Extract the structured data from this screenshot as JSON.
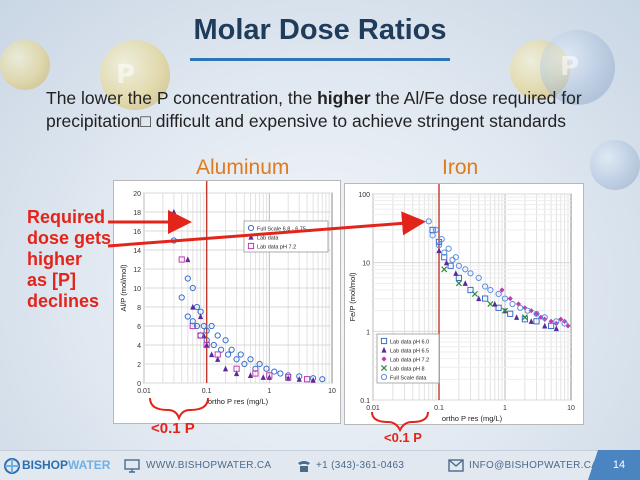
{
  "slide": {
    "title": "Molar Dose Ratios",
    "subtitle_pre": "The lower the P concentration, the ",
    "subtitle_bold": "higher",
    "subtitle_post": " the Al/Fe dose required for precipitation□ difficult and expensive to achieve stringent standards",
    "annotation_lines": [
      "Required",
      "dose gets",
      "higher",
      "as [P]",
      "declines"
    ],
    "range_label_left": "<0.1 P",
    "range_label_right": "<0.1 P",
    "page_number": "14"
  },
  "footer": {
    "logo_part1": "BISHOP",
    "logo_part2": "WATER",
    "website": "WWW.BISHOPWATER.CA",
    "phone": "+1 (343)-361-0463",
    "email": "INFO@BISHOPWATER.CA"
  },
  "colors": {
    "title": "#1f3c5a",
    "accent": "#2e75b6",
    "header_orange": "#e07a1e",
    "annotation_red": "#e3241b"
  },
  "chart_data": [
    {
      "type": "scatter",
      "header": "Aluminum",
      "xlabel": "ortho P res (mg/L)",
      "ylabel": "Al/P (mol/mol)",
      "xscale": "log",
      "xlim": [
        0.01,
        10
      ],
      "ylim": [
        0,
        20
      ],
      "x_ticks": [
        0.01,
        0.1,
        1,
        10
      ],
      "x_tick_labels": [
        "0.01",
        "0.1",
        "1",
        "10"
      ],
      "y_ticks": [
        0,
        2,
        4,
        6,
        8,
        10,
        12,
        14,
        16,
        18,
        20
      ],
      "y_tick_labels": [
        "0",
        "2",
        "4",
        "6",
        "8",
        "10",
        "12",
        "14",
        "16",
        "18",
        "20"
      ],
      "reference_line_x": 0.1,
      "legend_position": "top-right",
      "series": [
        {
          "name": "Full Scale 6.8 - 6.75",
          "marker": "circle",
          "color": "#3a6fd0",
          "x": [
            0.03,
            0.04,
            0.05,
            0.05,
            0.06,
            0.06,
            0.07,
            0.07,
            0.08,
            0.08,
            0.09,
            0.1,
            0.1,
            0.12,
            0.13,
            0.15,
            0.17,
            0.2,
            0.22,
            0.25,
            0.3,
            0.35,
            0.4,
            0.5,
            0.6,
            0.7,
            0.9,
            1.2,
            1.5,
            2,
            3,
            5,
            7
          ],
          "y": [
            15,
            9,
            11,
            7,
            10,
            6.5,
            8,
            6,
            7.5,
            5,
            6,
            5.5,
            4.5,
            6,
            4,
            5,
            3.5,
            4.5,
            3,
            3.5,
            2.5,
            3,
            2,
            2.5,
            1.5,
            2,
            1.5,
            1.2,
            1,
            0.8,
            0.7,
            0.5,
            0.4
          ]
        },
        {
          "name": "Lab data",
          "marker": "triangle",
          "color": "#5a2a9a",
          "x": [
            0.03,
            0.05,
            0.06,
            0.08,
            0.09,
            0.1,
            0.12,
            0.15,
            0.2,
            0.3,
            0.5,
            0.8,
            1,
            2,
            3,
            5
          ],
          "y": [
            18,
            13,
            8,
            7,
            5,
            4,
            3,
            2.5,
            1.5,
            1,
            0.8,
            0.6,
            0.6,
            0.5,
            0.4,
            0.3
          ]
        },
        {
          "name": "Lab data pH 7.2",
          "marker": "square",
          "color": "#c03ab0",
          "x": [
            0.04,
            0.06,
            0.08,
            0.1,
            0.15,
            0.3,
            0.6,
            1,
            2,
            4
          ],
          "y": [
            13,
            6,
            5,
            4,
            3,
            1.5,
            1,
            0.8,
            0.6,
            0.4
          ]
        }
      ]
    },
    {
      "type": "scatter",
      "header": "Iron",
      "xlabel": "ortho P res (mg/L)",
      "ylabel": "Fe/P (mol/mol)",
      "xscale": "log",
      "yscale": "log",
      "xlim": [
        0.01,
        10
      ],
      "ylim": [
        0.1,
        100
      ],
      "x_ticks": [
        0.01,
        0.1,
        1,
        10
      ],
      "x_tick_labels": [
        "0.01",
        "0.1",
        "1",
        "10"
      ],
      "y_ticks": [
        0.1,
        1,
        10,
        100
      ],
      "y_tick_labels": [
        "0.1",
        "1",
        "10",
        "100"
      ],
      "reference_line_x": 0.1,
      "legend_position": "bottom-left",
      "series": [
        {
          "name": "Lab data pH 6.0",
          "marker": "square",
          "color": "#3a6fd0",
          "x": [
            0.08,
            0.1,
            0.12,
            0.15,
            0.2,
            0.3,
            0.5,
            0.8,
            1.2,
            2,
            3,
            5
          ],
          "y": [
            30,
            20,
            12,
            9,
            6,
            4,
            3,
            2.2,
            1.8,
            1.5,
            1.4,
            1.2
          ]
        },
        {
          "name": "Lab data pH 6.5",
          "marker": "triangle",
          "color": "#5a2a9a",
          "x": [
            0.1,
            0.13,
            0.18,
            0.25,
            0.4,
            0.7,
            1,
            1.5,
            2.5,
            4,
            6
          ],
          "y": [
            15,
            10,
            7,
            5,
            3,
            2.5,
            2,
            1.6,
            1.4,
            1.2,
            1.1
          ]
        },
        {
          "name": "Lab data pH 7.2",
          "marker": "diamond",
          "color": "#c03ab0",
          "x": [
            0.9,
            1.2,
            1.6,
            2,
            2.5,
            3,
            3.5,
            4,
            5,
            6,
            7,
            8,
            9
          ],
          "y": [
            4,
            3,
            2.5,
            2.2,
            2,
            1.8,
            1.6,
            1.5,
            1.4,
            1.3,
            1.5,
            1.4,
            1.2
          ]
        },
        {
          "name": "Lab data pH 8",
          "marker": "cross",
          "color": "#2b8a3e",
          "x": [
            0.12,
            0.2,
            0.35,
            0.6,
            1,
            2
          ],
          "y": [
            8,
            5,
            3.5,
            2.5,
            2,
            1.6
          ]
        },
        {
          "name": "Full Scale data",
          "marker": "circle",
          "color": "#5c8fe0",
          "x": [
            0.07,
            0.08,
            0.09,
            0.1,
            0.11,
            0.12,
            0.14,
            0.16,
            0.18,
            0.2,
            0.25,
            0.3,
            0.4,
            0.5,
            0.6,
            0.8,
            1,
            1.3,
            1.7,
            2.2,
            3,
            4,
            6,
            8
          ],
          "y": [
            40,
            25,
            30,
            18,
            22,
            14,
            16,
            11,
            12,
            9,
            8,
            7,
            6,
            4.5,
            4,
            3.5,
            3,
            2.5,
            2.2,
            2,
            1.8,
            1.6,
            1.4,
            1.3
          ]
        }
      ]
    }
  ]
}
